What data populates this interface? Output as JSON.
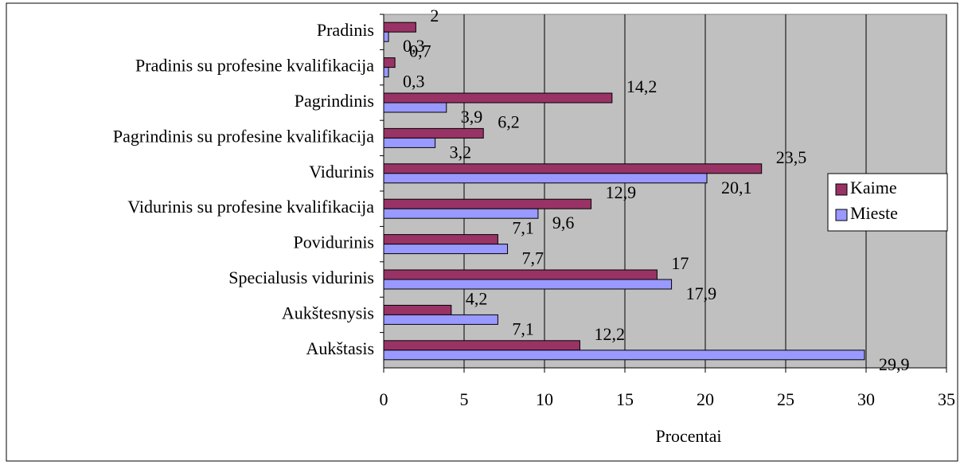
{
  "chart_data": {
    "type": "hbar",
    "x_label": "Procentai",
    "categories": [
      "Pradinis",
      "Pradinis su profesine kvalifikacija",
      "Pagrindinis",
      "Pagrindinis su profesine kvalifikacija",
      "Vidurinis",
      "Vidurinis su profesine kvalifikacija",
      "Povidurinis",
      "Specialusis vidurinis",
      "Aukštesnysis",
      "Aukštasis"
    ],
    "series": [
      {
        "name": "Kaime",
        "color": "#993366",
        "values": [
          2,
          0.7,
          14.2,
          6.2,
          23.5,
          12.9,
          7.1,
          17,
          4.2,
          12.2
        ],
        "value_labels": [
          "2",
          "0,7",
          "14,2",
          "6,2",
          "23,5",
          "12,9",
          "7,1",
          "17",
          "4,2",
          "12,2"
        ]
      },
      {
        "name": "Mieste",
        "color": "#9999ff",
        "values": [
          0.3,
          0.3,
          3.9,
          3.2,
          20.1,
          9.6,
          7.7,
          17.9,
          7.1,
          29.9
        ],
        "value_labels": [
          "0,3",
          "0,3",
          "3,9",
          "3,2",
          "20,1",
          "9,6",
          "7,7",
          "17,9",
          "7,1",
          "29,9"
        ]
      }
    ],
    "xlim": [
      0,
      35
    ],
    "xticks": [
      0,
      5,
      10,
      15,
      20,
      25,
      30,
      35
    ],
    "grid": true,
    "legend": "right",
    "background": "#c0c0c0"
  }
}
